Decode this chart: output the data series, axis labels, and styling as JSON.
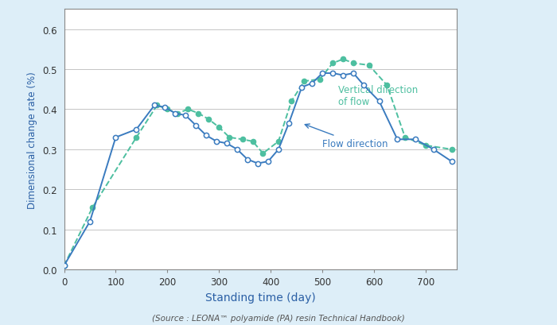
{
  "flow_direction_x": [
    0,
    50,
    100,
    140,
    175,
    195,
    215,
    235,
    255,
    275,
    295,
    315,
    335,
    355,
    375,
    395,
    415,
    435,
    460,
    480,
    500,
    520,
    540,
    560,
    580,
    610,
    645,
    680,
    715,
    750
  ],
  "flow_direction_y": [
    0.01,
    0.12,
    0.33,
    0.35,
    0.41,
    0.405,
    0.39,
    0.385,
    0.36,
    0.335,
    0.32,
    0.315,
    0.3,
    0.275,
    0.265,
    0.27,
    0.3,
    0.365,
    0.455,
    0.465,
    0.49,
    0.49,
    0.485,
    0.49,
    0.46,
    0.42,
    0.325,
    0.325,
    0.3,
    0.27
  ],
  "vertical_direction_x": [
    0,
    55,
    140,
    180,
    200,
    220,
    240,
    260,
    280,
    300,
    320,
    345,
    365,
    385,
    415,
    440,
    465,
    495,
    520,
    540,
    560,
    590,
    625,
    660,
    700,
    750
  ],
  "vertical_direction_y": [
    0.01,
    0.155,
    0.33,
    0.41,
    0.4,
    0.39,
    0.4,
    0.39,
    0.375,
    0.355,
    0.33,
    0.325,
    0.32,
    0.29,
    0.32,
    0.42,
    0.47,
    0.475,
    0.515,
    0.525,
    0.515,
    0.51,
    0.46,
    0.33,
    0.31,
    0.3
  ],
  "flow_color": "#3a7bbf",
  "vertical_color": "#4dbfa0",
  "background_color": "#ddeef8",
  "plot_bg_color": "#ffffff",
  "xlabel": "Standing time (day)",
  "ylabel": "Dimensional change rate (%)",
  "source_text": "(Source : LEONA™ polyamide (PA) resin Technical Handbook)",
  "xlim": [
    0,
    760
  ],
  "ylim": [
    0.0,
    0.65
  ],
  "yticks": [
    0.0,
    0.1,
    0.2,
    0.3,
    0.4,
    0.5,
    0.6
  ],
  "xticks": [
    0,
    100,
    200,
    300,
    400,
    500,
    600,
    700
  ],
  "label_flow": "Flow direction",
  "label_vertical": "Vertical direction\nof flow"
}
